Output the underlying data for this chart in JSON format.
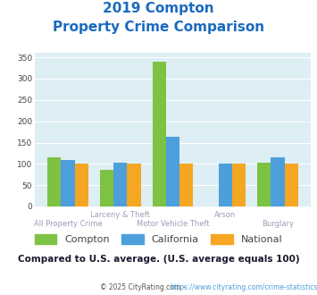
{
  "title_line1": "2019 Compton",
  "title_line2": "Property Crime Comparison",
  "categories": [
    "All Property Crime",
    "Larceny & Theft",
    "Motor Vehicle Theft",
    "Arson",
    "Burglary"
  ],
  "top_labels": [
    "",
    "Larceny & Theft",
    "",
    "Arson",
    ""
  ],
  "bottom_labels": [
    "All Property Crime",
    "",
    "Motor Vehicle Theft",
    "",
    "Burglary"
  ],
  "compton": [
    115,
    85,
    340,
    0,
    103
  ],
  "california": [
    110,
    103,
    163,
    100,
    115
  ],
  "national": [
    100,
    100,
    100,
    100,
    100
  ],
  "color_compton": "#7dc242",
  "color_california": "#4d9fdc",
  "color_national": "#f5a623",
  "ylim": [
    0,
    360
  ],
  "yticks": [
    0,
    50,
    100,
    150,
    200,
    250,
    300,
    350
  ],
  "bg_color": "#ddeef4",
  "subtitle": "Compared to U.S. average. (U.S. average equals 100)",
  "footer_left": "© 2025 CityRating.com - ",
  "footer_right": "https://www.cityrating.com/crime-statistics/",
  "title_color": "#1a6abf",
  "subtitle_color": "#1a1a2e",
  "footer_left_color": "#555555",
  "footer_right_color": "#4d9fdc",
  "xtick_color": "#a09ab5",
  "ytick_color": "#444444",
  "legend_text_color": "#444444"
}
